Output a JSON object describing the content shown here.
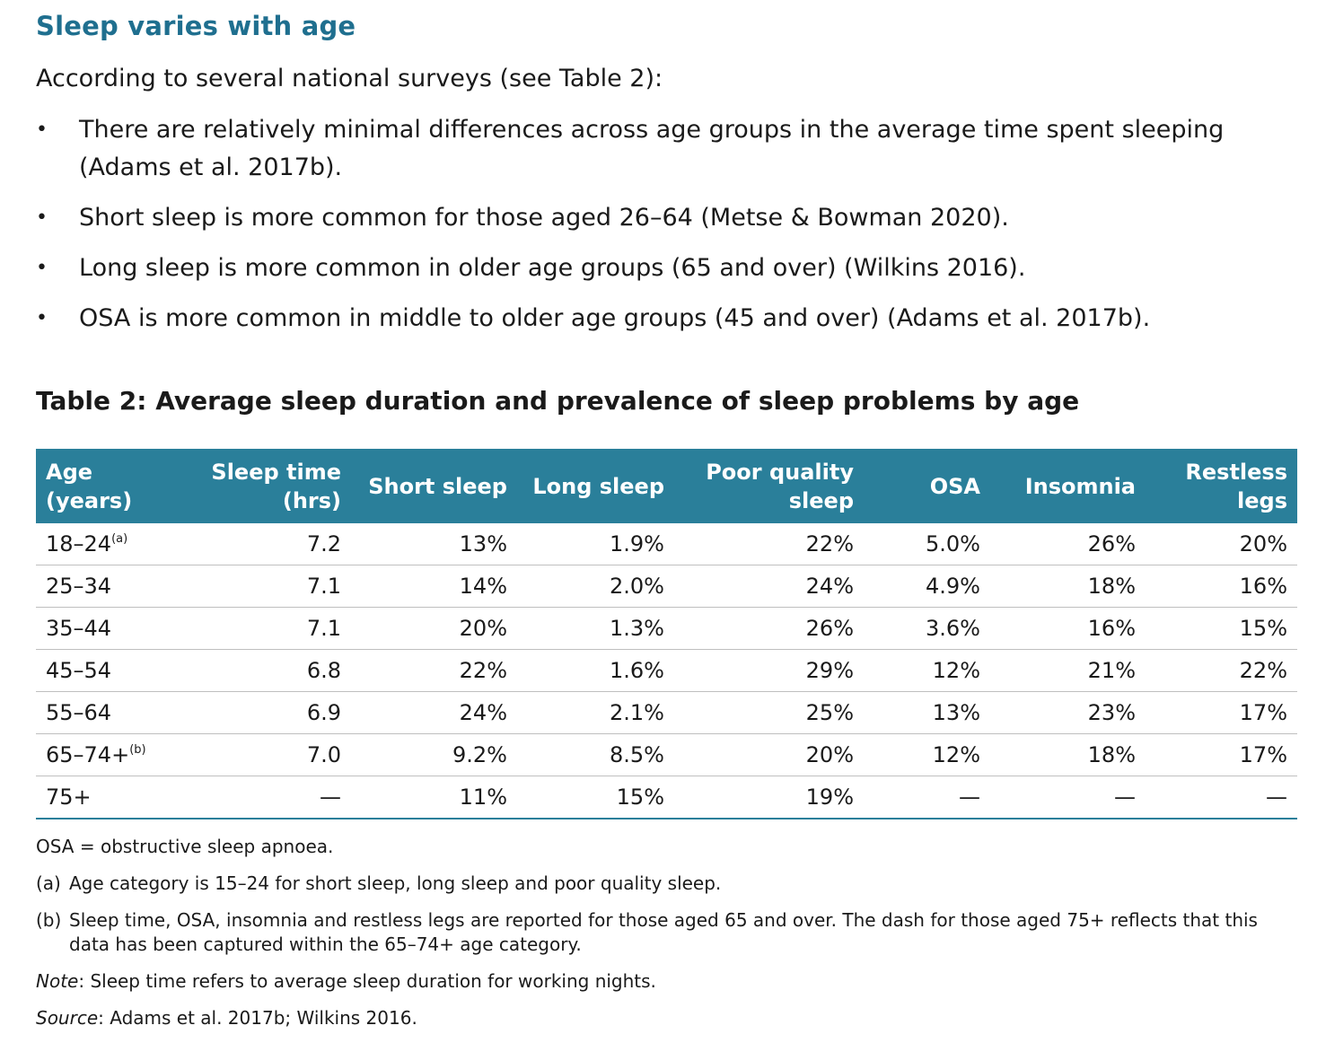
{
  "heading": "Sleep varies with age",
  "intro": "According to several national surveys (see Table 2):",
  "bullets": [
    "There are relatively minimal differences across age groups in the average time spent sleeping (Adams et al. 2017b).",
    "Short sleep is more common for those aged 26–64 (Metse & Bowman 2020).",
    "Long sleep is more common in older age groups (65 and over) (Wilkins 2016).",
    "OSA is more common in middle to older age groups (45 and over) (Adams et al. 2017b)."
  ],
  "bullet_symbol": "•",
  "table": {
    "title": "Table 2: Average sleep duration and prevalence of sleep problems by age",
    "headers": [
      [
        "Age",
        "(years)"
      ],
      [
        "Sleep time",
        "(hrs)"
      ],
      [
        "Short sleep"
      ],
      [
        "Long sleep"
      ],
      [
        "Poor quality",
        "sleep"
      ],
      [
        "OSA"
      ],
      [
        "Insomnia"
      ],
      [
        "Restless",
        "legs"
      ]
    ],
    "rows": [
      {
        "age": "18–24",
        "sup": "(a)",
        "cells": [
          "7.2",
          "13%",
          "1.9%",
          "22%",
          "5.0%",
          "26%",
          "20%"
        ]
      },
      {
        "age": "25–34",
        "sup": "",
        "cells": [
          "7.1",
          "14%",
          "2.0%",
          "24%",
          "4.9%",
          "18%",
          "16%"
        ]
      },
      {
        "age": "35–44",
        "sup": "",
        "cells": [
          "7.1",
          "20%",
          "1.3%",
          "26%",
          "3.6%",
          "16%",
          "15%"
        ]
      },
      {
        "age": "45–54",
        "sup": "",
        "cells": [
          "6.8",
          "22%",
          "1.6%",
          "29%",
          "12%",
          "21%",
          "22%"
        ]
      },
      {
        "age": "55–64",
        "sup": "",
        "cells": [
          "6.9",
          "24%",
          "2.1%",
          "25%",
          "13%",
          "23%",
          "17%"
        ]
      },
      {
        "age": "65–74+",
        "sup": "(b)",
        "cells": [
          "7.0",
          "9.2%",
          "8.5%",
          "20%",
          "12%",
          "18%",
          "17%"
        ]
      },
      {
        "age": "75+",
        "sup": "",
        "cells": [
          "—",
          "11%",
          "15%",
          "19%",
          "—",
          "—",
          "—"
        ]
      }
    ]
  },
  "notes": {
    "abbrev": "OSA = obstructive sleep apnoea.",
    "footnotes": [
      {
        "key": "(a)",
        "text": "Age category is 15–24 for short sleep, long sleep and poor quality sleep."
      },
      {
        "key": "(b)",
        "text": "Sleep time, OSA, insomnia and restless legs are reported for those aged 65 and over. The dash for those aged 75+ reflects that this data has been captured within the 65–74+ age category."
      }
    ],
    "note_label": "Note",
    "note_text": ": Sleep time refers to average sleep duration for working nights.",
    "source_label": "Source",
    "source_text": ": Adams et al. 2017b; Wilkins 2016."
  },
  "colors": {
    "heading": "#1f6f8f",
    "header_bg": "#2a7f9a"
  }
}
